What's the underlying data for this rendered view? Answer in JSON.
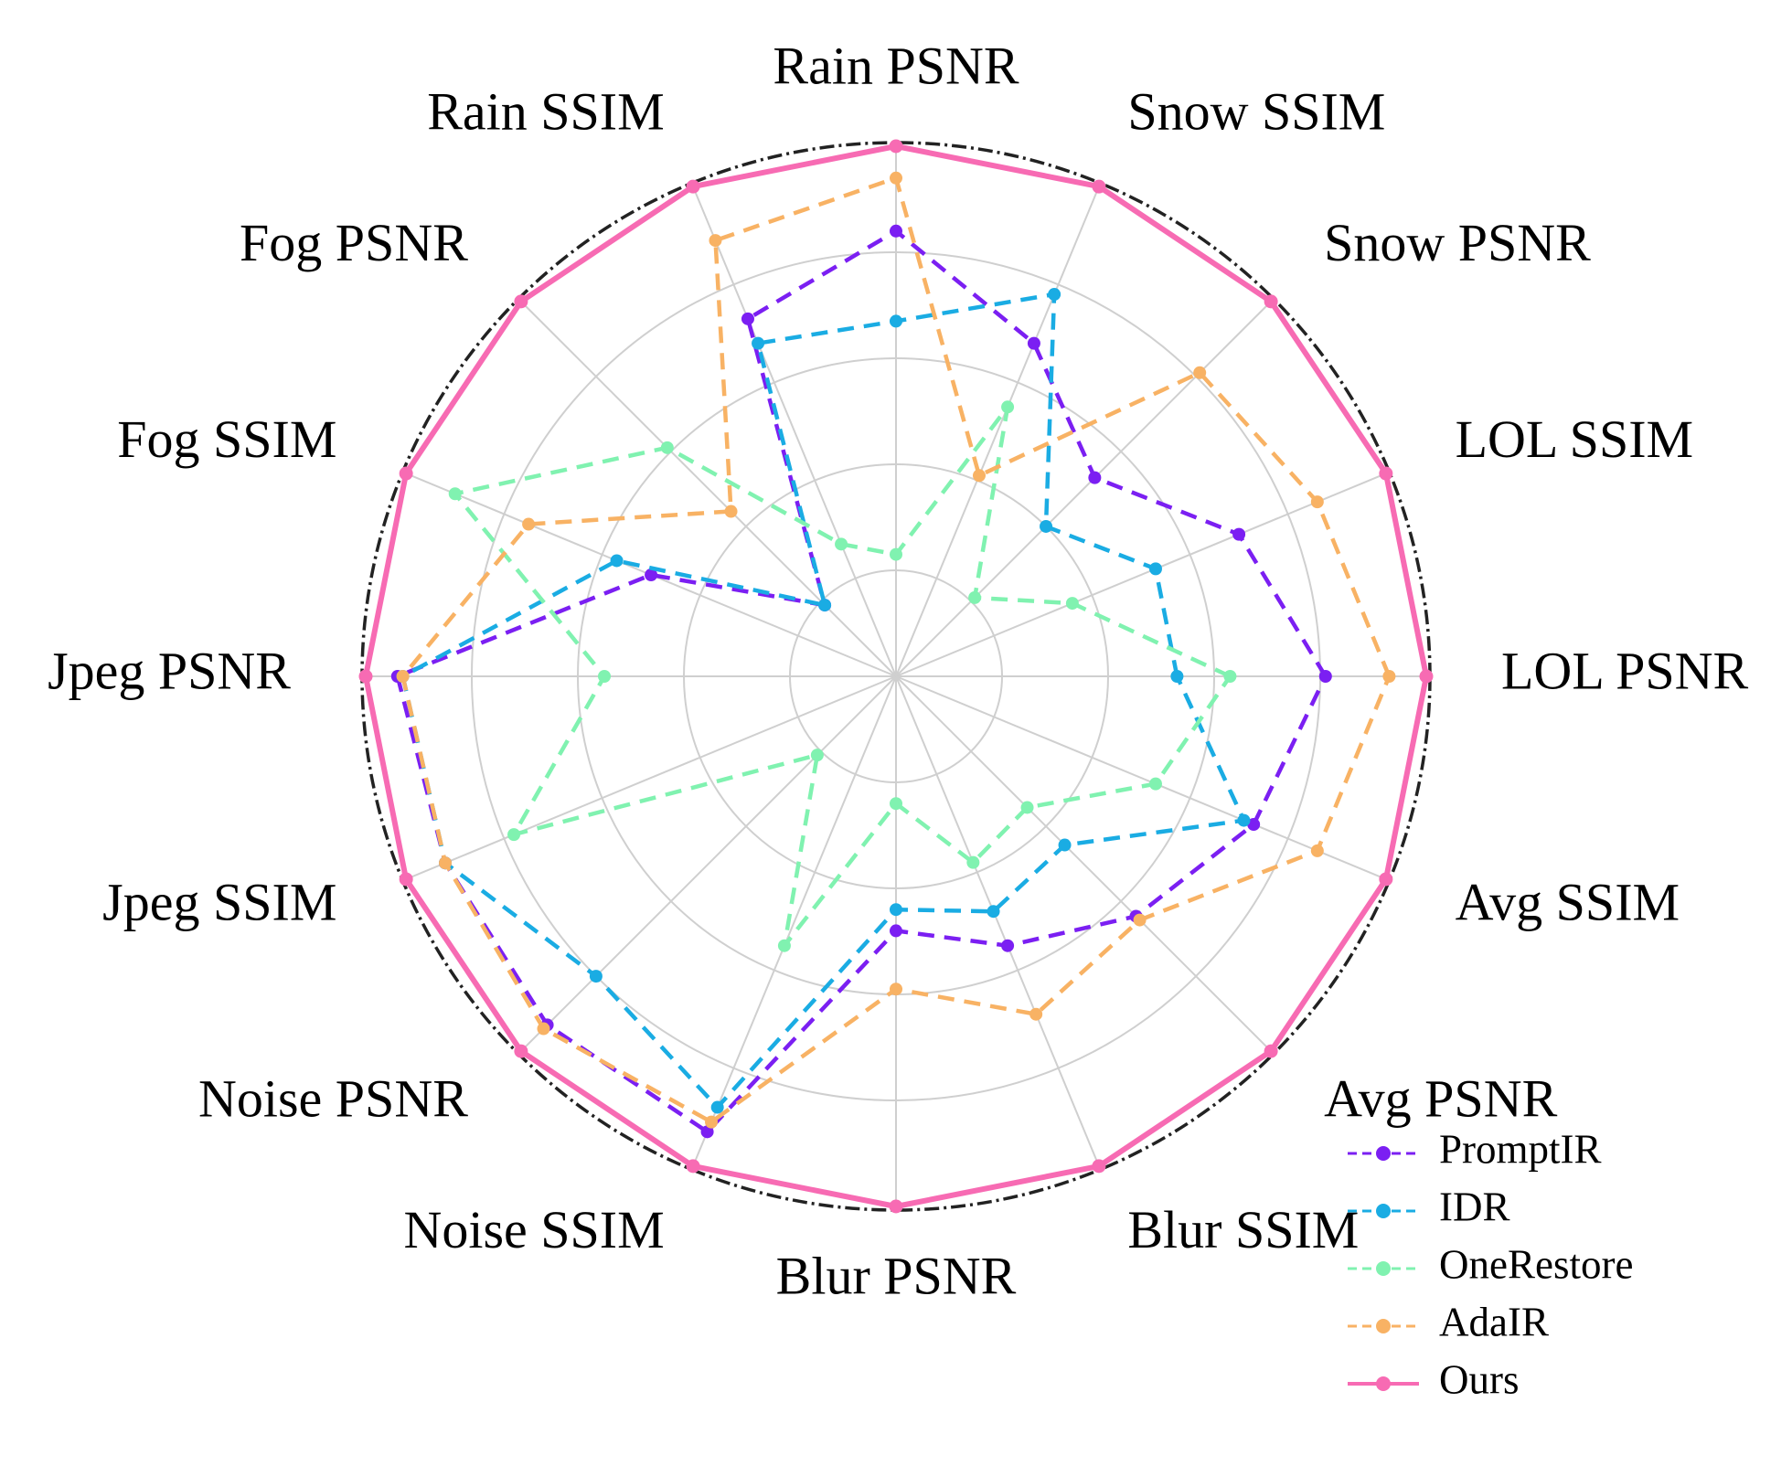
{
  "chart_data": {
    "type": "radar",
    "axes": [
      "LOL PSNR",
      "LOL SSIM",
      "Snow PSNR",
      "Snow SSIM",
      "Rain PSNR",
      "Rain SSIM",
      "Fog PSNR",
      "Fog SSIM",
      "Jpeg PSNR",
      "Jpeg SSIM",
      "Noise PSNR",
      "Noise SSIM",
      "Blur PSNR",
      "Blur SSIM",
      "Avg PSNR",
      "Avg SSIM"
    ],
    "rlim": [
      0,
      1
    ],
    "rings": [
      0.2,
      0.4,
      0.6,
      0.8,
      1.0
    ],
    "grid": true,
    "legend_position": "bottom-right",
    "series": [
      {
        "name": "PromptIR",
        "color": "#7B1FF2",
        "style": "dashed",
        "values": [
          0.81,
          0.7,
          0.53,
          0.68,
          0.84,
          0.73,
          0.19,
          0.5,
          0.94,
          0.92,
          0.93,
          0.93,
          0.48,
          0.55,
          0.64,
          0.73
        ]
      },
      {
        "name": "IDR",
        "color": "#1AACE3",
        "style": "dashed",
        "values": [
          0.53,
          0.53,
          0.4,
          0.78,
          0.67,
          0.68,
          0.19,
          0.57,
          0.93,
          0.92,
          0.8,
          0.88,
          0.44,
          0.48,
          0.45,
          0.71
        ]
      },
      {
        "name": "OneRestore",
        "color": "#80F2B0",
        "style": "dashed",
        "values": [
          0.63,
          0.36,
          0.21,
          0.55,
          0.23,
          0.27,
          0.61,
          0.9,
          0.55,
          0.78,
          0.21,
          0.55,
          0.24,
          0.38,
          0.35,
          0.53
        ]
      },
      {
        "name": "AdaIR",
        "color": "#F8B264",
        "style": "dashed",
        "values": [
          0.93,
          0.86,
          0.81,
          0.41,
          0.94,
          0.89,
          0.44,
          0.75,
          0.93,
          0.92,
          0.94,
          0.91,
          0.59,
          0.69,
          0.65,
          0.86
        ]
      },
      {
        "name": "Ours",
        "color": "#F76BB3",
        "style": "solid",
        "values": [
          1.0,
          1.0,
          1.0,
          1.0,
          1.0,
          1.0,
          1.0,
          1.0,
          1.0,
          1.0,
          1.0,
          1.0,
          1.0,
          1.0,
          1.0,
          1.0
        ]
      }
    ]
  }
}
